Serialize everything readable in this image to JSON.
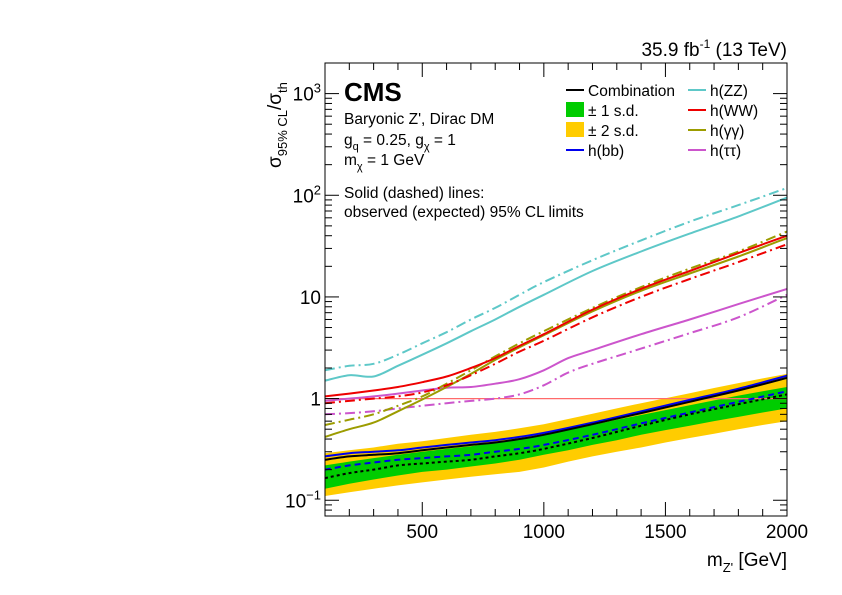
{
  "chart_data": {
    "type": "line",
    "lumi_main": "35.9 fb",
    "lumi_exp": "-1",
    "lumi_energy": " (13 TeV)",
    "cms_label": "CMS",
    "info": {
      "line1": "Baryonic Z', Dirac DM",
      "line2_a": "g",
      "line2_a_sub": "q",
      "line2_b": " = 0.25, g",
      "line2_b_sub": "χ",
      "line2_c": " = 1",
      "line3_a": "m",
      "line3_a_sub": "χ",
      "line3_b": " = 1 GeV",
      "line4": "Solid (dashed) lines:",
      "line5": "observed (expected) 95% CL limits"
    },
    "xlabel_main": "m",
    "xlabel_sub": "Z'",
    "xlabel_unit": " [GeV]",
    "ylabel_main": "σ",
    "ylabel_sub": "95% CL",
    "ylabel_slash": "/σ",
    "ylabel_sub2": "th",
    "xlim": [
      100,
      2000
    ],
    "ylim": [
      0.07,
      2000
    ],
    "y_log": true,
    "x_ticks": [
      500,
      1000,
      1500,
      2000
    ],
    "y_ticks": [
      {
        "value": 0.1,
        "base": "10",
        "exp": "−1"
      },
      {
        "value": 1,
        "base": "1",
        "exp": ""
      },
      {
        "value": 10,
        "base": "10",
        "exp": ""
      },
      {
        "value": 100,
        "base": "10",
        "exp": "2"
      },
      {
        "value": 1000,
        "base": "10",
        "exp": "3"
      }
    ],
    "reference_line": {
      "y": 1,
      "color": "#ff6a6a"
    },
    "colors": {
      "combination": "#000000",
      "band1": "#00cc00",
      "band2": "#ffcc00",
      "hbb": "#0000ee",
      "hzz": "#5ec8c8",
      "hww": "#ee0000",
      "hgg": "#9c9c00",
      "htt": "#cc55cc"
    },
    "legend": [
      {
        "key": "combination",
        "label": "Combination",
        "style": "line"
      },
      {
        "key": "band1",
        "label": "± 1 s.d.",
        "style": "box"
      },
      {
        "key": "band2",
        "label": "± 2 s.d.",
        "style": "box"
      },
      {
        "key": "hbb",
        "label": "h(bb)",
        "style": "line"
      },
      {
        "key": "hzz",
        "label": "h(ZZ)",
        "style": "line"
      },
      {
        "key": "hww",
        "label": "h(WW)",
        "style": "line"
      },
      {
        "key": "hgg",
        "label": "h(γγ)",
        "style": "line"
      },
      {
        "key": "htt",
        "label": "h(ττ)",
        "style": "line"
      }
    ],
    "bands": {
      "x": [
        100,
        200,
        300,
        400,
        500,
        600,
        700,
        800,
        900,
        1000,
        1100,
        1200,
        1300,
        1400,
        1500,
        1600,
        1700,
        1800,
        1900,
        2000
      ],
      "two_sd_low": [
        0.11,
        0.12,
        0.13,
        0.14,
        0.15,
        0.16,
        0.17,
        0.18,
        0.19,
        0.21,
        0.24,
        0.27,
        0.3,
        0.33,
        0.37,
        0.41,
        0.45,
        0.5,
        0.55,
        0.6
      ],
      "one_sd_low": [
        0.13,
        0.145,
        0.16,
        0.175,
        0.19,
        0.2,
        0.215,
        0.23,
        0.25,
        0.28,
        0.31,
        0.35,
        0.39,
        0.44,
        0.49,
        0.54,
        0.6,
        0.66,
        0.73,
        0.8
      ],
      "one_sd_high": [
        0.22,
        0.24,
        0.26,
        0.28,
        0.3,
        0.32,
        0.34,
        0.37,
        0.4,
        0.44,
        0.49,
        0.55,
        0.62,
        0.69,
        0.77,
        0.86,
        0.96,
        1.07,
        1.18,
        1.3
      ],
      "two_sd_high": [
        0.29,
        0.31,
        0.33,
        0.36,
        0.38,
        0.41,
        0.44,
        0.47,
        0.51,
        0.56,
        0.63,
        0.71,
        0.8,
        0.9,
        1.01,
        1.13,
        1.27,
        1.42,
        1.58,
        1.75
      ]
    },
    "series": [
      {
        "key": "combination",
        "kind": "observed",
        "x": [
          100,
          200,
          300,
          400,
          500,
          600,
          700,
          800,
          900,
          1000,
          1200,
          1400,
          1600,
          1800,
          2000
        ],
        "y": [
          0.25,
          0.27,
          0.28,
          0.29,
          0.31,
          0.33,
          0.35,
          0.37,
          0.4,
          0.44,
          0.56,
          0.72,
          0.93,
          1.2,
          1.6
        ]
      },
      {
        "key": "combination",
        "kind": "expected",
        "x": [
          100,
          200,
          300,
          400,
          500,
          600,
          700,
          800,
          900,
          1000,
          1200,
          1400,
          1600,
          1800,
          2000
        ],
        "y": [
          0.165,
          0.185,
          0.2,
          0.22,
          0.23,
          0.24,
          0.25,
          0.27,
          0.29,
          0.32,
          0.41,
          0.54,
          0.7,
          0.88,
          1.1
        ]
      },
      {
        "key": "hbb",
        "kind": "observed",
        "x": [
          100,
          200,
          300,
          400,
          500,
          600,
          700,
          800,
          900,
          1000,
          1200,
          1400,
          1600,
          1800,
          2000
        ],
        "y": [
          0.27,
          0.29,
          0.3,
          0.31,
          0.33,
          0.35,
          0.37,
          0.39,
          0.42,
          0.46,
          0.58,
          0.75,
          0.97,
          1.25,
          1.68
        ]
      },
      {
        "key": "hbb",
        "kind": "expected",
        "x": [
          100,
          200,
          300,
          400,
          500,
          600,
          700,
          800,
          900,
          1000,
          1200,
          1400,
          1600,
          1800,
          2000
        ],
        "y": [
          0.2,
          0.22,
          0.235,
          0.25,
          0.26,
          0.27,
          0.28,
          0.3,
          0.32,
          0.35,
          0.44,
          0.57,
          0.73,
          0.93,
          1.18
        ]
      },
      {
        "key": "hzz",
        "kind": "observed",
        "x": [
          100,
          200,
          300,
          400,
          500,
          600,
          700,
          800,
          900,
          1000,
          1200,
          1400,
          1600,
          1800,
          2000
        ],
        "y": [
          1.5,
          1.7,
          1.65,
          2.1,
          2.7,
          3.5,
          4.6,
          6.0,
          8.0,
          10.5,
          18,
          28,
          42,
          62,
          95
        ]
      },
      {
        "key": "hzz",
        "kind": "expected",
        "x": [
          100,
          200,
          300,
          400,
          500,
          600,
          700,
          800,
          900,
          1000,
          1200,
          1400,
          1600,
          1800,
          2000
        ],
        "y": [
          1.9,
          2.1,
          2.2,
          2.7,
          3.5,
          4.5,
          6.0,
          7.8,
          10.5,
          14,
          23,
          36,
          55,
          80,
          118
        ]
      },
      {
        "key": "hww",
        "kind": "observed",
        "x": [
          100,
          200,
          300,
          400,
          500,
          600,
          700,
          800,
          900,
          1000,
          1200,
          1400,
          1600,
          1800,
          2000
        ],
        "y": [
          1.05,
          1.12,
          1.2,
          1.3,
          1.45,
          1.65,
          2.0,
          2.5,
          3.3,
          4.3,
          7.5,
          12,
          18,
          27,
          40
        ]
      },
      {
        "key": "hww",
        "kind": "expected",
        "x": [
          100,
          200,
          300,
          400,
          500,
          600,
          700,
          800,
          900,
          1000,
          1200,
          1400,
          1600,
          1800,
          2000
        ],
        "y": [
          0.9,
          0.95,
          1.0,
          1.05,
          1.15,
          1.35,
          1.7,
          2.2,
          2.9,
          3.7,
          6.3,
          10,
          15,
          22,
          33
        ]
      },
      {
        "key": "hgg",
        "kind": "observed",
        "x": [
          100,
          200,
          300,
          400,
          500,
          600,
          700,
          800,
          900,
          1000,
          1200,
          1400,
          1600,
          1800,
          2000
        ],
        "y": [
          0.42,
          0.5,
          0.58,
          0.75,
          0.98,
          1.3,
          1.75,
          2.4,
          3.2,
          4.2,
          7.2,
          11.5,
          17,
          25,
          38
        ]
      },
      {
        "key": "hgg",
        "kind": "expected",
        "x": [
          100,
          200,
          300,
          400,
          500,
          600,
          700,
          800,
          900,
          1000,
          1200,
          1400,
          1600,
          1800,
          2000
        ],
        "y": [
          0.55,
          0.62,
          0.7,
          0.85,
          1.05,
          1.4,
          1.9,
          2.6,
          3.5,
          4.6,
          7.8,
          12.5,
          19,
          28,
          44
        ]
      },
      {
        "key": "htt",
        "kind": "observed",
        "x": [
          100,
          200,
          300,
          400,
          500,
          600,
          700,
          800,
          900,
          1000,
          1100,
          1200,
          1400,
          1600,
          1800,
          2000
        ],
        "y": [
          0.95,
          1.0,
          1.05,
          1.12,
          1.2,
          1.28,
          1.3,
          1.4,
          1.55,
          1.9,
          2.5,
          3.0,
          4.3,
          6.0,
          8.5,
          12
        ]
      },
      {
        "key": "htt",
        "kind": "expected",
        "x": [
          100,
          200,
          300,
          400,
          500,
          600,
          700,
          800,
          900,
          1000,
          1100,
          1200,
          1400,
          1600,
          1800,
          2000
        ],
        "y": [
          0.7,
          0.72,
          0.75,
          0.8,
          0.85,
          0.9,
          0.95,
          1.0,
          1.1,
          1.35,
          1.8,
          2.2,
          3.1,
          4.4,
          6.3,
          10.5
        ]
      }
    ]
  }
}
